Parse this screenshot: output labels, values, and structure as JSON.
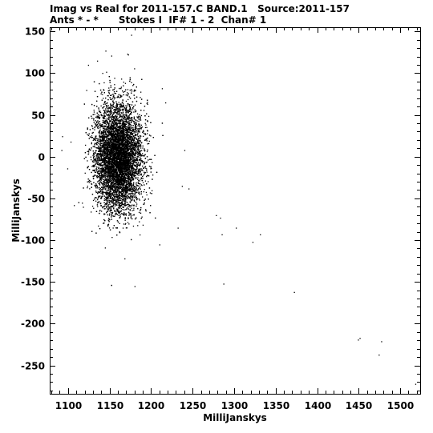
{
  "header": {
    "line1": "Imag vs Real for 2011-157.C BAND.1   Source:2011-157",
    "line2": "Ants * - *      Stokes I  IF# 1 - 2  Chan# 1"
  },
  "chart_data": {
    "type": "scatter",
    "xlabel": "MilliJanskys",
    "ylabel": "MilliJanskys",
    "xlim": [
      1078,
      1524
    ],
    "ylim": [
      -284,
      155
    ],
    "xticks": [
      1100,
      1150,
      1200,
      1250,
      1300,
      1350,
      1400,
      1450,
      1500
    ],
    "yticks": [
      150,
      100,
      50,
      0,
      -50,
      -100,
      -150,
      -200,
      -250
    ],
    "xtick_labels": [
      "1100",
      "1150",
      "1200",
      "1250",
      "1300",
      "1350",
      "1400",
      "1450",
      "1500"
    ],
    "ytick_labels": [
      "150",
      "100",
      "50",
      "0",
      "-50",
      "-100",
      "-150",
      "-200",
      "-250"
    ],
    "point_color": "#000000",
    "main_cluster": {
      "x_center": 1160,
      "x_std": 14,
      "y_center": 0,
      "y_std": 32,
      "approx_count": 9000
    },
    "outliers": [
      [
        1278,
        -70
      ],
      [
        1283,
        -73
      ],
      [
        1285,
        -93
      ],
      [
        1302,
        -85
      ],
      [
        1322,
        -102
      ],
      [
        1331,
        -93
      ],
      [
        1287,
        -152
      ],
      [
        1372,
        -162
      ],
      [
        1449,
        -219
      ],
      [
        1451,
        -217
      ],
      [
        1477,
        -221
      ],
      [
        1474,
        -237
      ],
      [
        1518,
        -272
      ],
      [
        1240,
        8
      ],
      [
        1245,
        -38
      ],
      [
        1237,
        -35
      ],
      [
        1217,
        65
      ],
      [
        1213,
        82
      ],
      [
        1180,
        -155
      ],
      [
        1232,
        -85
      ],
      [
        1210,
        -105
      ],
      [
        1092,
        8
      ],
      [
        1099,
        -14
      ],
      [
        1103,
        18
      ],
      [
        1107,
        -58
      ],
      [
        1118,
        -60
      ],
      [
        1135,
        115
      ],
      [
        1176,
        146
      ],
      [
        1145,
        127
      ],
      [
        1124,
        110
      ]
    ],
    "grid": false,
    "legend": "none"
  }
}
